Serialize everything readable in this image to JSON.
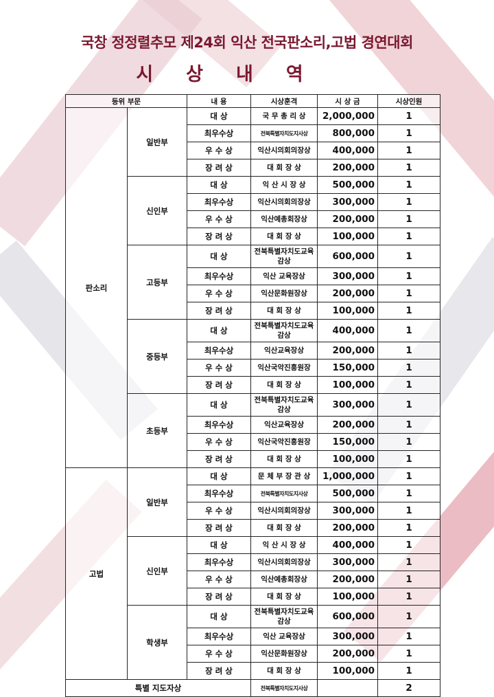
{
  "header": {
    "title": "국창 정정렬추모 제24회 익산 전국판소리,고법 경연대회",
    "subtitle_chars": [
      "시",
      "상",
      "내",
      "역"
    ]
  },
  "table": {
    "columns": [
      "등위 부문",
      "내 용",
      "시상훈격",
      "시 상 금",
      "시상인원"
    ],
    "groups": [
      {
        "name": "판소리",
        "divisions": [
          {
            "name": "일반부",
            "rows": [
              [
                "대    상",
                "국 무 총 리 상",
                "2,000,000",
                "1"
              ],
              [
                "최우수상",
                "전북특별자치도지사상",
                "800,000",
                "1"
              ],
              [
                "우 수 상",
                "익산시의회의장상",
                "400,000",
                "1"
              ],
              [
                "장 려 상",
                "대  회  장  상",
                "200,000",
                "1"
              ]
            ]
          },
          {
            "name": "신인부",
            "rows": [
              [
                "대    상",
                "익 산 시 장 상",
                "500,000",
                "1"
              ],
              [
                "최우수상",
                "익산시의회의장상",
                "300,000",
                "1"
              ],
              [
                "우 수 상",
                "익산예총회장상",
                "200,000",
                "1"
              ],
              [
                "장 려 상",
                "대  회  장  상",
                "100,000",
                "1"
              ]
            ]
          },
          {
            "name": "고등부",
            "rows": [
              [
                "대    상",
                "전북특별자치도교육감상",
                "600,000",
                "1"
              ],
              [
                "최우수상",
                "익산 교육장상",
                "300,000",
                "1"
              ],
              [
                "우 수 상",
                "익산문화원장상",
                "200,000",
                "1"
              ],
              [
                "장 려 상",
                "대  회  장  상",
                "100,000",
                "1"
              ]
            ]
          },
          {
            "name": "중등부",
            "rows": [
              [
                "대    상",
                "전북특별자치도교육감상",
                "400,000",
                "1"
              ],
              [
                "최우수상",
                "익산교육장상",
                "200,000",
                "1"
              ],
              [
                "우 수 상",
                "익산국악진흥원장",
                "150,000",
                "1"
              ],
              [
                "장 려 상",
                "대  회  장  상",
                "100,000",
                "1"
              ]
            ]
          },
          {
            "name": "초등부",
            "rows": [
              [
                "대    상",
                "전북특별자치도교육감상",
                "300,000",
                "1"
              ],
              [
                "최우수상",
                "익산교육장상",
                "200,000",
                "1"
              ],
              [
                "우 수 상",
                "익산국악진흥원장",
                "150,000",
                "1"
              ],
              [
                "장 려 상",
                "대  회  장  상",
                "100,000",
                "1"
              ]
            ]
          }
        ]
      },
      {
        "name": "고법",
        "divisions": [
          {
            "name": "일반부",
            "rows": [
              [
                "대    상",
                "문 체 부 장 관 상",
                "1,000,000",
                "1"
              ],
              [
                "최우수상",
                "전북특별자치도지사상",
                "500,000",
                "1"
              ],
              [
                "우 수 상",
                "익산시의회의장상",
                "300,000",
                "1"
              ],
              [
                "장 려 상",
                "대  회  장  상",
                "200,000",
                "1"
              ]
            ]
          },
          {
            "name": "신인부",
            "rows": [
              [
                "대    상",
                "익 산 시 장 상",
                "400,000",
                "1"
              ],
              [
                "최우수상",
                "익산시의회의장상",
                "300,000",
                "1"
              ],
              [
                "우 수 상",
                "익산예총회장상",
                "200,000",
                "1"
              ],
              [
                "장 려 상",
                "대  회  장  상",
                "100,000",
                "1"
              ]
            ]
          },
          {
            "name": "학생부",
            "rows": [
              [
                "대    상",
                "전북특별자치도교육감상",
                "600,000",
                "1"
              ],
              [
                "최우수상",
                "익산 교육장상",
                "300,000",
                "1"
              ],
              [
                "우 수 상",
                "익산문화원장상",
                "200,000",
                "1"
              ],
              [
                "장 려 상",
                "대  회  장  상",
                "100,000",
                "1"
              ]
            ]
          }
        ]
      }
    ],
    "special": {
      "label": "특별 지도자상",
      "honor": "전북특별자치도지사상",
      "prize": "",
      "count": "2"
    }
  },
  "colors": {
    "title": "#7a1830",
    "decor_pink": "#e8a0a8",
    "decor_gray": "#c8c8d0",
    "decor_red": "#c04050"
  }
}
